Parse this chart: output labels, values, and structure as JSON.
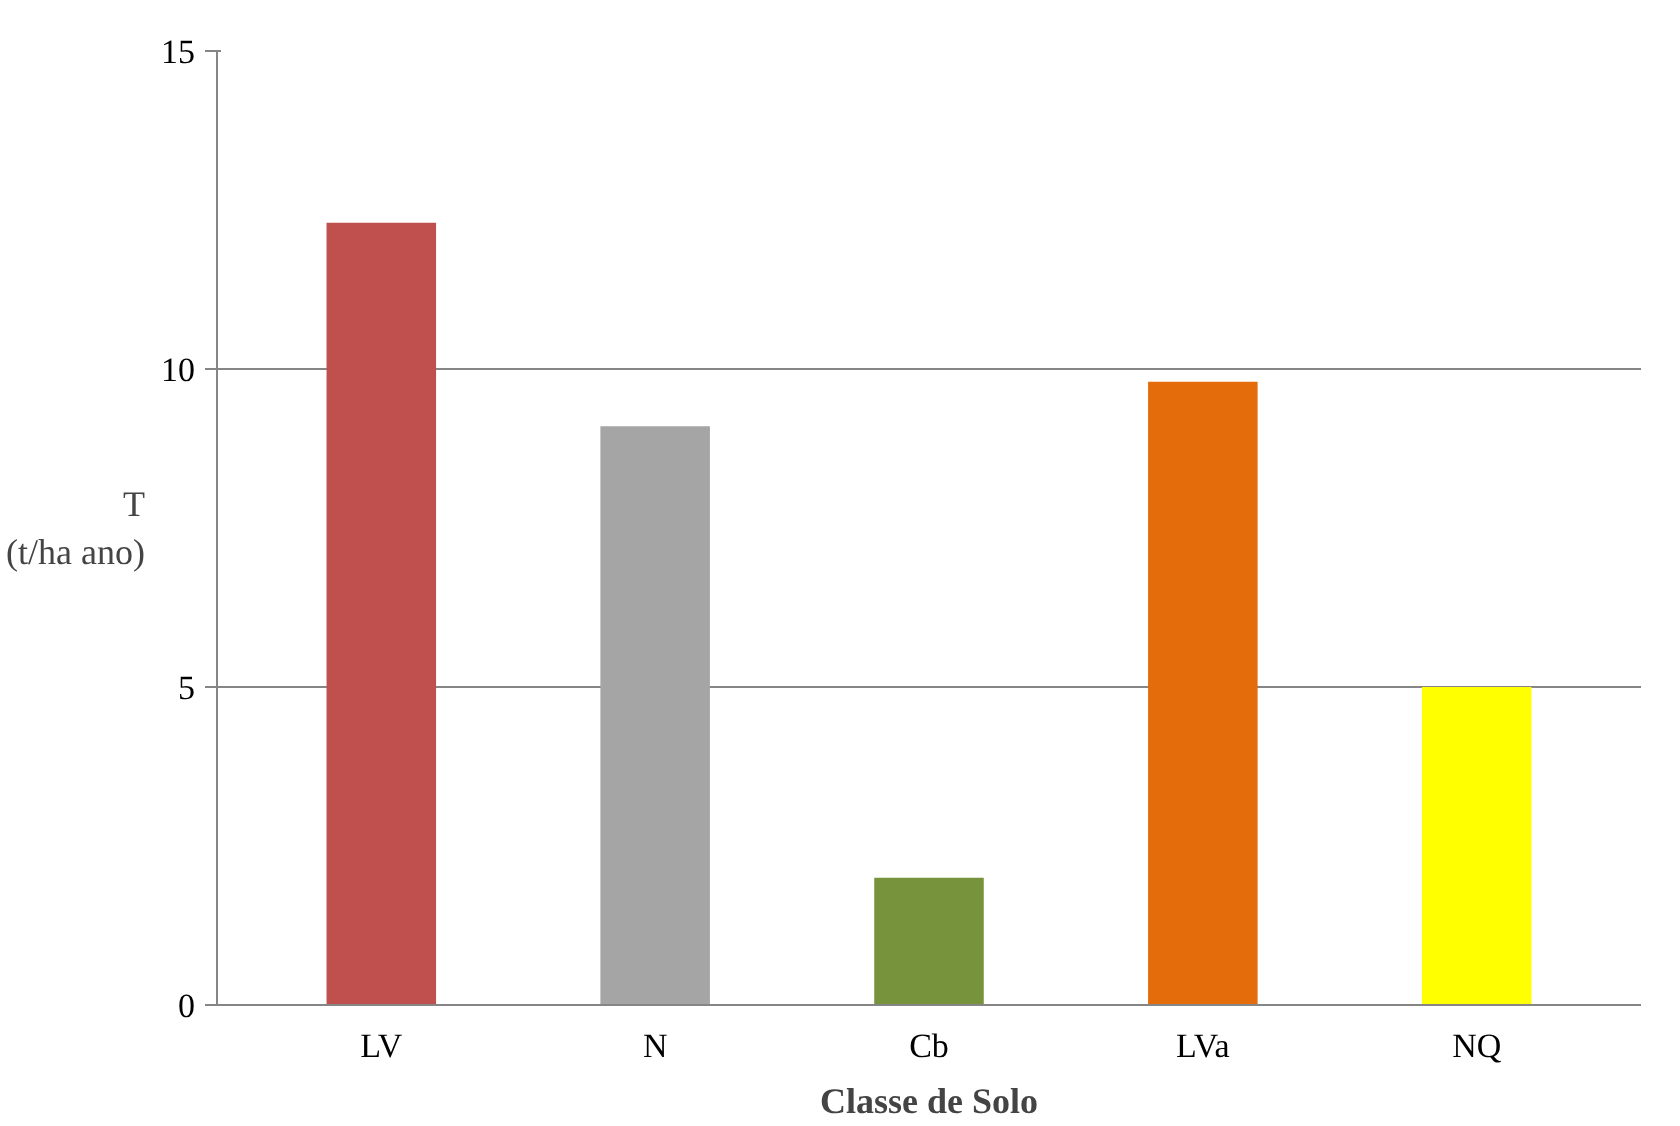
{
  "chart_data": {
    "type": "bar",
    "xlabel": "Classe de Solo",
    "ylabel": "T\n(t/ha ano)",
    "categories": [
      "LV",
      "N",
      "Cb",
      "LVa",
      "NQ"
    ],
    "values": [
      12.3,
      9.1,
      2.0,
      9.8,
      5.0
    ],
    "colors": [
      "#c0504d",
      "#a5a5a5",
      "#77933c",
      "#e46c0a",
      "#ffff00"
    ],
    "ylim": [
      0,
      15
    ],
    "yticks": [
      0,
      5,
      10,
      15
    ],
    "grid": "y"
  }
}
